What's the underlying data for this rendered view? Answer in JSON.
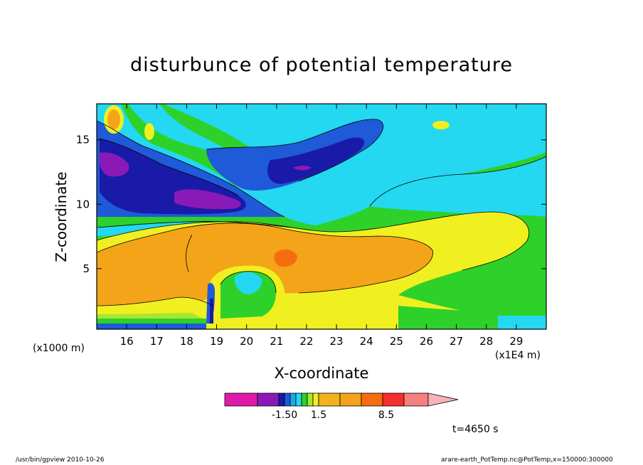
{
  "chart_data": {
    "type": "contour",
    "title": "disturbunce of potential temperature",
    "xlabel": "X-coordinate",
    "ylabel": "Z-coordinate",
    "x_unit": "(x1E4 m)",
    "y_unit": "(x1000 m)",
    "xlim": [
      15.0,
      30.0
    ],
    "ylim": [
      0.3,
      17.8
    ],
    "xticks": [
      "16",
      "17",
      "18",
      "19",
      "20",
      "21",
      "22",
      "23",
      "24",
      "25",
      "26",
      "27",
      "28",
      "29"
    ],
    "yticks": [
      "5",
      "10",
      "15"
    ],
    "colorbar": {
      "tick_labels": [
        "-1.50",
        "1.5",
        "8.5"
      ],
      "colors": [
        "#e01aa8",
        "#8a1ab8",
        "#1a1aa8",
        "#1f5ad8",
        "#18a8e8",
        "#23d8f0",
        "#2ed12a",
        "#a8e630",
        "#f0f020",
        "#f2b21c",
        "#f4a418",
        "#f46e10",
        "#f52e2e",
        "#f58080",
        "#f8b2b8"
      ]
    },
    "colors": {
      "violet": "#8a1ab8",
      "navy": "#1a1aa8",
      "blue": "#1f5ad8",
      "cyan": "#23d8f0",
      "green": "#2ed12a",
      "lime": "#a8e630",
      "yellow": "#f0f020",
      "orange": "#f4a418",
      "darkorange": "#f46e10",
      "red": "#f52e2e",
      "pink": "#f58080"
    }
  },
  "annotations": {
    "time": "t=4650 s",
    "program": "/usr/bin/gpview  2010-10-26",
    "source": "arare-earth_PotTemp.nc@PotTemp,x=150000:300000"
  }
}
